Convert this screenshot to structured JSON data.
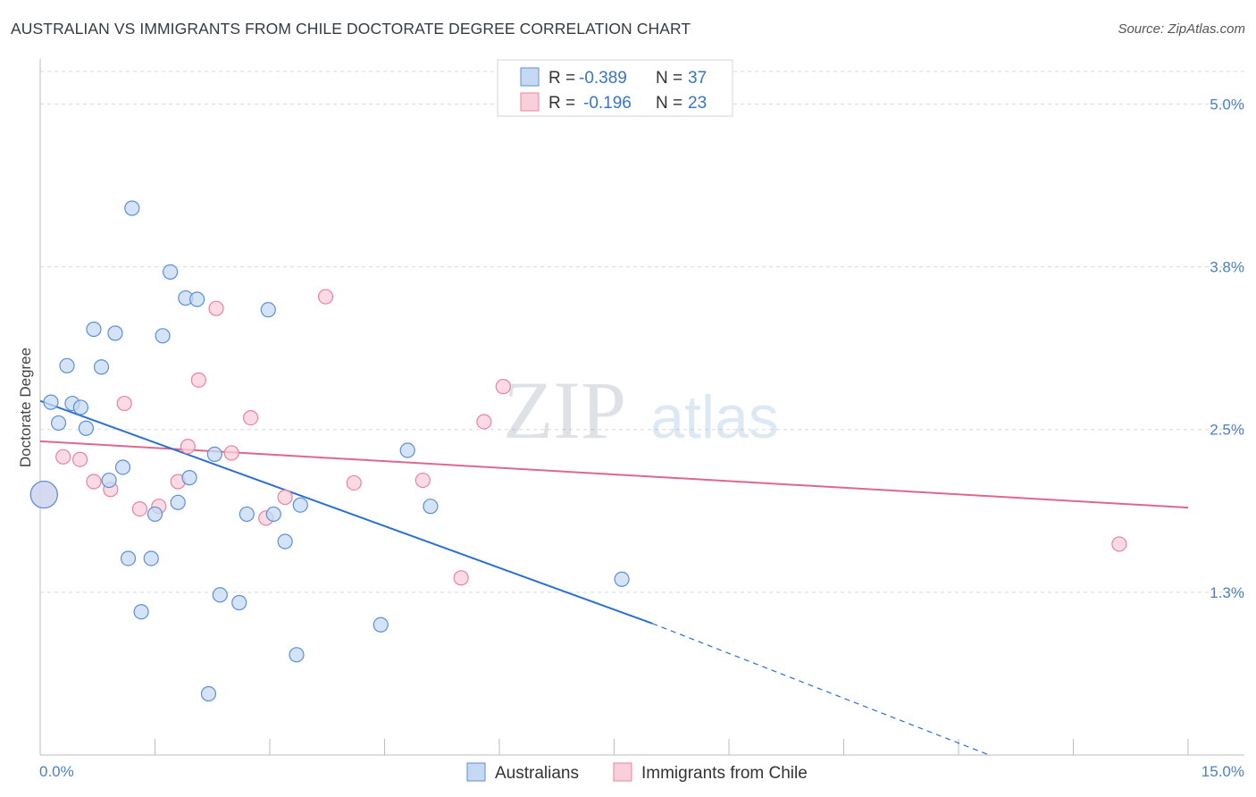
{
  "title": "AUSTRALIAN VS IMMIGRANTS FROM CHILE DOCTORATE DEGREE CORRELATION CHART",
  "source": "Source: ZipAtlas.com",
  "watermark": {
    "zip": "ZIP",
    "atlas": "atlas"
  },
  "colors": {
    "blue": "#5b8fd6",
    "blue_fill": "#c5d9f3",
    "blue_line": "#2d6fd0",
    "pink": "#e8839f",
    "pink_fill": "#f8cfdb",
    "pink_line": "#e0678c",
    "tick": "#4a7fc7"
  },
  "legend": {
    "rows": [
      {
        "r_label": "R = ",
        "r_value": "-0.389",
        "n_label": "N = ",
        "n_value": "37",
        "series": "blue"
      },
      {
        "r_label": "R = ",
        "r_value": "-0.196",
        "n_label": "N = ",
        "n_value": "23",
        "series": "pink"
      }
    ]
  },
  "chart_data": {
    "type": "scatter",
    "title": "AUSTRALIAN VS IMMIGRANTS FROM CHILE DOCTORATE DEGREE CORRELATION CHART",
    "xlabel": "",
    "ylabel": "Doctorate Degree",
    "xlim": [
      0,
      15
    ],
    "ylim": [
      0,
      5.25
    ],
    "x_tick_labels": [
      "0.0%",
      "15.0%"
    ],
    "y_ticks": [
      1.25,
      2.5,
      3.75,
      5.0
    ],
    "y_tick_labels": [
      "1.3%",
      "2.5%",
      "3.8%",
      "5.0%"
    ],
    "grid": true,
    "series": [
      {
        "name": "Australians",
        "color": "blue",
        "r": -0.389,
        "n": 37,
        "points": [
          [
            1.2,
            4.2
          ],
          [
            1.7,
            3.71
          ],
          [
            1.9,
            3.51
          ],
          [
            2.05,
            3.5
          ],
          [
            2.98,
            3.42
          ],
          [
            0.7,
            3.27
          ],
          [
            0.98,
            3.24
          ],
          [
            1.6,
            3.22
          ],
          [
            0.35,
            2.99
          ],
          [
            0.8,
            2.98
          ],
          [
            0.14,
            2.71
          ],
          [
            0.42,
            2.7
          ],
          [
            0.53,
            2.67
          ],
          [
            0.24,
            2.55
          ],
          [
            0.6,
            2.51
          ],
          [
            4.8,
            2.34
          ],
          [
            2.28,
            2.31
          ],
          [
            1.08,
            2.21
          ],
          [
            0.9,
            2.11
          ],
          [
            1.95,
            2.13
          ],
          [
            1.8,
            1.94
          ],
          [
            3.4,
            1.92
          ],
          [
            5.1,
            1.91
          ],
          [
            1.5,
            1.85
          ],
          [
            2.7,
            1.85
          ],
          [
            3.05,
            1.85
          ],
          [
            3.2,
            1.64
          ],
          [
            1.15,
            1.51
          ],
          [
            1.45,
            1.51
          ],
          [
            7.6,
            1.35
          ],
          [
            2.35,
            1.23
          ],
          [
            2.6,
            1.17
          ],
          [
            1.32,
            1.1
          ],
          [
            4.45,
            1.0
          ],
          [
            3.35,
            0.77
          ],
          [
            2.2,
            0.47
          ],
          [
            0.05,
            2.0
          ]
        ],
        "trend": {
          "x0": 0.0,
          "y0": 2.72,
          "x1": 8.0,
          "y1": 1.01,
          "dashed_to_x": 12.4,
          "dashed_to_y": 0.0
        }
      },
      {
        "name": "Immigrants from Chile",
        "color": "pink",
        "r": -0.196,
        "n": 23,
        "points": [
          [
            3.73,
            3.52
          ],
          [
            2.3,
            3.43
          ],
          [
            2.07,
            2.88
          ],
          [
            6.05,
            2.83
          ],
          [
            1.1,
            2.7
          ],
          [
            2.75,
            2.59
          ],
          [
            5.8,
            2.56
          ],
          [
            1.93,
            2.37
          ],
          [
            0.3,
            2.29
          ],
          [
            2.5,
            2.32
          ],
          [
            0.52,
            2.27
          ],
          [
            0.7,
            2.1
          ],
          [
            1.8,
            2.1
          ],
          [
            4.1,
            2.09
          ],
          [
            5.0,
            2.11
          ],
          [
            0.92,
            2.04
          ],
          [
            3.2,
            1.98
          ],
          [
            1.55,
            1.91
          ],
          [
            1.3,
            1.89
          ],
          [
            2.95,
            1.82
          ],
          [
            14.1,
            1.62
          ],
          [
            5.5,
            1.36
          ],
          [
            0.05,
            2.0
          ]
        ],
        "trend": {
          "x0": 0.0,
          "y0": 2.41,
          "x1": 15.0,
          "y1": 1.9
        }
      }
    ]
  },
  "bottom_legend": [
    {
      "label": "Australians",
      "series": "blue"
    },
    {
      "label": "Immigrants from Chile",
      "series": "pink"
    }
  ]
}
